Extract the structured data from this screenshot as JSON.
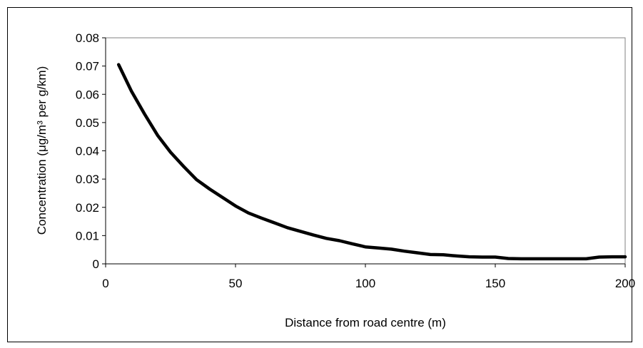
{
  "chart_data": {
    "type": "line",
    "title": "",
    "xlabel": "Distance from road centre (m)",
    "ylabel": "Concentration (μg/m³ per g/km)",
    "xlim": [
      0,
      200
    ],
    "ylim": [
      0,
      0.08
    ],
    "xticks": [
      0,
      50,
      100,
      150,
      200
    ],
    "xtick_labels": [
      "0",
      "50",
      "100",
      "150",
      "200"
    ],
    "yticks": [
      0,
      0.01,
      0.02,
      0.03,
      0.04,
      0.05,
      0.06,
      0.07,
      0.08
    ],
    "ytick_labels": [
      "0",
      "0.01",
      "0.02",
      "0.03",
      "0.04",
      "0.05",
      "0.06",
      "0.07",
      "0.08"
    ],
    "grid": false,
    "line_color": "#000000",
    "series": [
      {
        "x": [
          5,
          10,
          15,
          20,
          25,
          30,
          35,
          40,
          45,
          50,
          55,
          60,
          65,
          70,
          75,
          80,
          85,
          90,
          95,
          100,
          105,
          110,
          115,
          120,
          125,
          130,
          135,
          140,
          145,
          150,
          155,
          160,
          165,
          170,
          175,
          180,
          185,
          190,
          195,
          200
        ],
        "values": [
          0.0705,
          0.061,
          0.053,
          0.0455,
          0.0395,
          0.0345,
          0.0298,
          0.0265,
          0.0235,
          0.0205,
          0.018,
          0.0162,
          0.0145,
          0.0128,
          0.0115,
          0.0102,
          0.009,
          0.0082,
          0.0071,
          0.006,
          0.0056,
          0.0052,
          0.0045,
          0.0039,
          0.0033,
          0.0032,
          0.0028,
          0.0025,
          0.0024,
          0.0024,
          0.0019,
          0.0018,
          0.0018,
          0.0018,
          0.0018,
          0.0018,
          0.0018,
          0.0024,
          0.0025,
          0.0025
        ]
      }
    ]
  }
}
